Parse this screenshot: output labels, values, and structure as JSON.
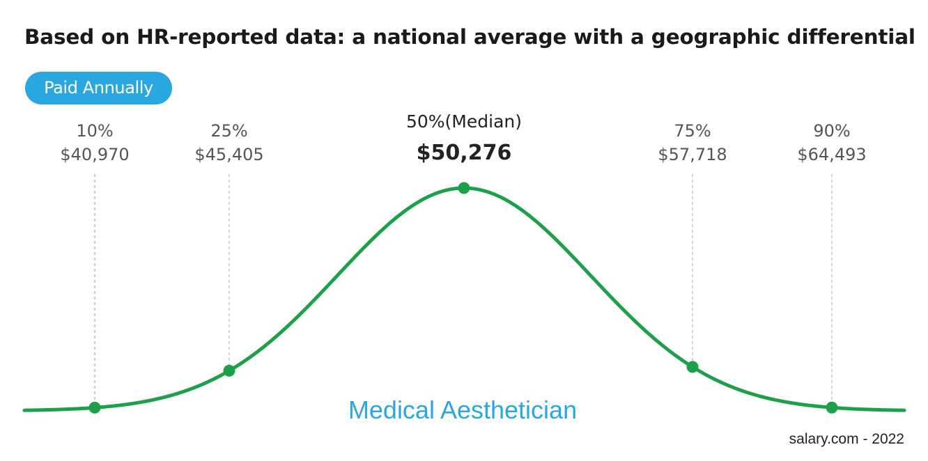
{
  "header": {
    "title": "Based on HR-reported data: a national average with a geographic differential",
    "badge": "Paid Annually"
  },
  "footer": {
    "source": "salary.com - 2022"
  },
  "colors": {
    "curve": "#1ea04a",
    "accent": "#2aa7e0",
    "label": "#555555",
    "median_label": "#222222"
  },
  "chart_data": {
    "type": "line",
    "title": "Medical Aesthetician",
    "xlabel": "",
    "ylabel": "",
    "percentiles": [
      {
        "percentile": "10%",
        "value": "$40,970",
        "amount": 40970,
        "emphasis": false
      },
      {
        "percentile": "25%",
        "value": "$45,405",
        "amount": 45405,
        "emphasis": false
      },
      {
        "percentile": "50%(Median)",
        "value": "$50,276",
        "amount": 50276,
        "emphasis": true
      },
      {
        "percentile": "75%",
        "value": "$57,718",
        "amount": 57718,
        "emphasis": false
      },
      {
        "percentile": "90%",
        "value": "$64,493",
        "amount": 64493,
        "emphasis": false
      }
    ]
  }
}
